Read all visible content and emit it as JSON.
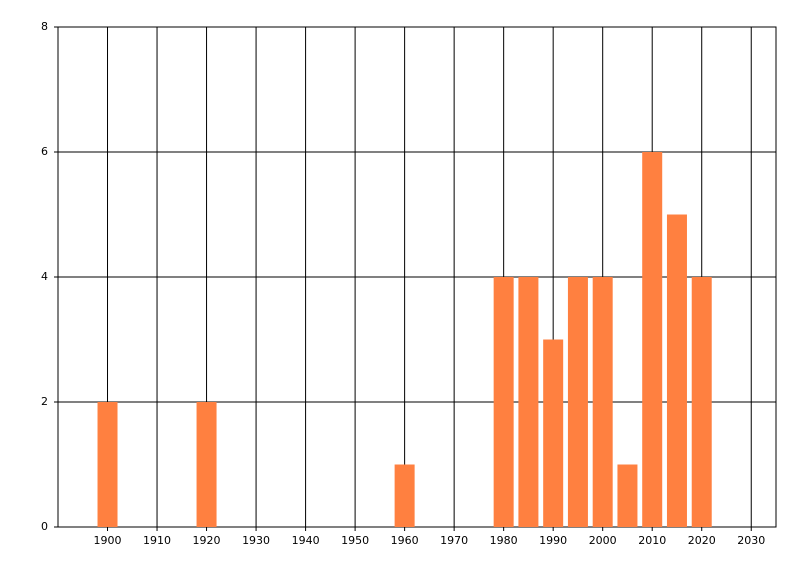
{
  "chart_data": {
    "type": "bar",
    "x": [
      1900,
      1920,
      1960,
      1980,
      1985,
      1990,
      1995,
      2000,
      2005,
      2010,
      2015,
      2020
    ],
    "values": [
      2,
      2,
      1,
      4,
      4,
      3,
      4,
      4,
      1,
      6,
      5,
      4
    ],
    "color": "#ff8040",
    "xlim": [
      1890,
      2035
    ],
    "xticks": [
      1900,
      1910,
      1920,
      1930,
      1940,
      1950,
      1960,
      1970,
      1980,
      1990,
      2000,
      2010,
      2020,
      2030
    ],
    "ylim": [
      0,
      8
    ],
    "yticks": [
      0,
      2,
      4,
      6,
      8
    ],
    "grid": true
  }
}
